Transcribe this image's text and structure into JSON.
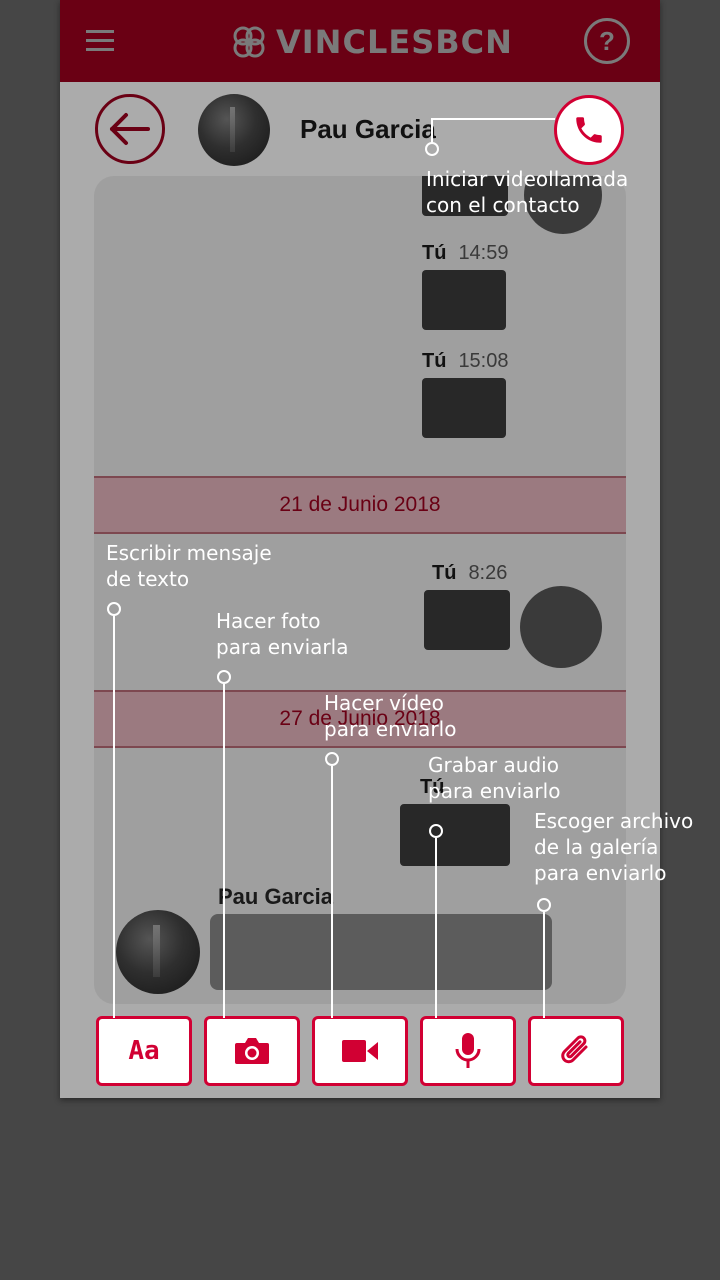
{
  "header": {
    "logo_text": "VINCLESBCN",
    "help_label": "?",
    "menu_icon": "hamburger-menu-icon",
    "brand_color": "#6a0014"
  },
  "contact": {
    "name": "Pau Garcia"
  },
  "messages": [
    {
      "sender": "Tú",
      "time": "14:59"
    },
    {
      "sender": "Tú",
      "time": "15:08"
    },
    {
      "sender": "Tú",
      "time": "8:26"
    },
    {
      "sender": "Tú",
      "time": ""
    }
  ],
  "date_separators": [
    "21 de Junio 2018",
    "27 de Junio 2018"
  ],
  "bottom_message": {
    "sender": "Pau Garcia"
  },
  "toolbar": {
    "text_label": "Aa",
    "accent_color": "#d10033"
  },
  "callouts": {
    "call": "Iniciar videollamada\ncon el contacto",
    "text": "Escribir mensaje\nde texto",
    "photo": "Hacer foto\npara enviarla",
    "video": "Hacer vídeo\npara enviarlo",
    "audio": "Grabar audio\npara enviarlo",
    "file": "Escoger archivo\nde la galería\npara enviarlo"
  }
}
